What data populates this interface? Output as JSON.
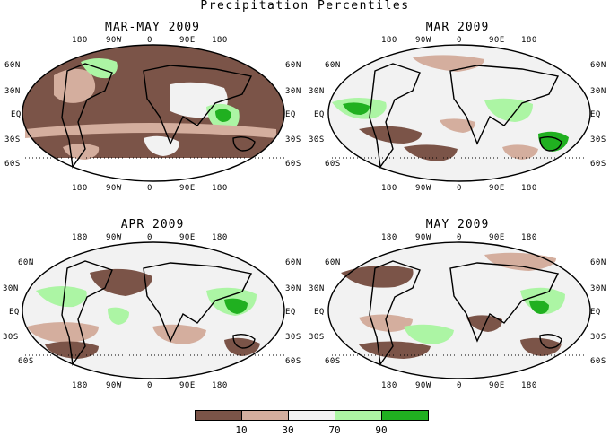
{
  "title": "Precipitation Percentiles",
  "lon_labels": [
    "180",
    "90W",
    "0",
    "90E",
    "180"
  ],
  "lat_labels_left": [
    "60N",
    "30N",
    "EQ",
    "30S",
    "60S"
  ],
  "lat_labels_right": [
    "60N",
    "30N",
    "EQ",
    "30S",
    "60S"
  ],
  "panels": [
    {
      "title": "MAR-MAY 2009",
      "dominant": "dry"
    },
    {
      "title": "MAR 2009",
      "dominant": "mixed"
    },
    {
      "title": "APR 2009",
      "dominant": "mixed"
    },
    {
      "title": "MAY 2009",
      "dominant": "mixed"
    }
  ],
  "legend": {
    "ticks": [
      "10",
      "30",
      "70",
      "90"
    ],
    "colors": [
      "#7b5448",
      "#d4ae9e",
      "#f2f2f2",
      "#acf5a4",
      "#20b020"
    ]
  }
}
